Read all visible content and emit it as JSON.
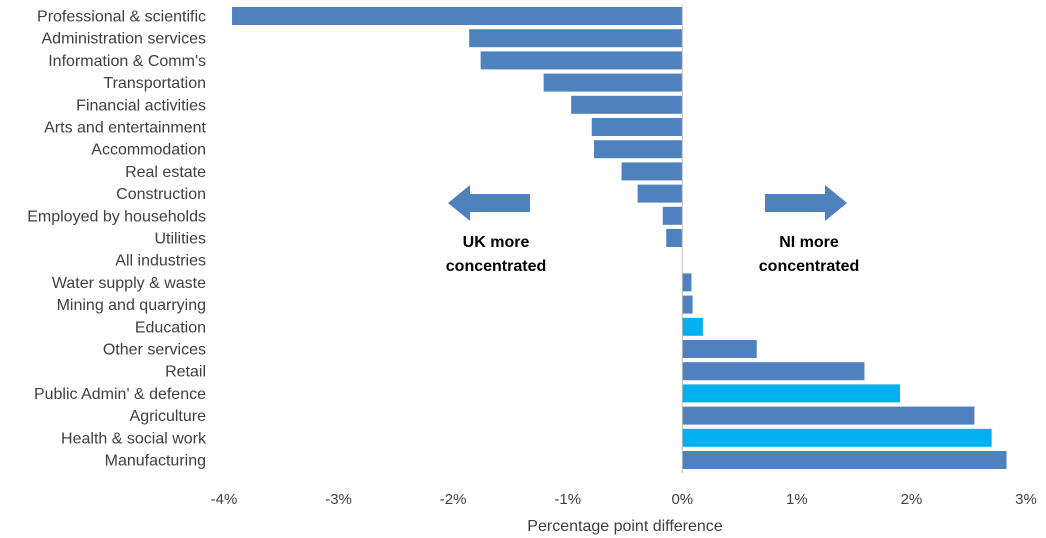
{
  "chart_data": {
    "type": "bar",
    "orientation": "horizontal",
    "categories": [
      "Professional & scientific",
      "Administration services",
      "Information & Comm's",
      "Transportation",
      "Financial activities",
      "Arts and entertainment",
      "Accommodation",
      "Real estate",
      "Construction",
      "Employed by households",
      "Utilities",
      "All industries",
      "Water supply & waste",
      "Mining and quarrying",
      "Education",
      "Other services",
      "Retail",
      "Public Admin' & defence",
      "Agriculture",
      "Health & social work",
      "Manufacturing"
    ],
    "values": [
      -3.93,
      -1.86,
      -1.76,
      -1.21,
      -0.97,
      -0.79,
      -0.77,
      -0.53,
      -0.39,
      -0.17,
      -0.14,
      0.0,
      0.08,
      0.09,
      0.18,
      0.65,
      1.59,
      1.9,
      2.55,
      2.7,
      2.83
    ],
    "highlighted": [
      false,
      false,
      false,
      false,
      false,
      false,
      false,
      false,
      false,
      false,
      false,
      false,
      false,
      false,
      true,
      false,
      false,
      true,
      false,
      true,
      false
    ],
    "colors": {
      "default": "#4f81bd",
      "highlight": "#00b0f0",
      "arrow": "#4f81bd"
    },
    "xlim": [
      -4,
      3
    ],
    "xticks": [
      -4,
      -3,
      -2,
      -1,
      0,
      1,
      2,
      3
    ],
    "xtick_labels": [
      "-4%",
      "-3%",
      "-2%",
      "-1%",
      "0%",
      "1%",
      "2%",
      "3%"
    ],
    "xlabel": "Percentage point difference",
    "ylabel": "",
    "title": "",
    "grid": false,
    "legend": "none",
    "annotations": [
      {
        "lines": [
          "UK more",
          "concentrated"
        ],
        "direction": "left"
      },
      {
        "lines": [
          "NI more",
          "concentrated"
        ],
        "direction": "right"
      }
    ]
  }
}
